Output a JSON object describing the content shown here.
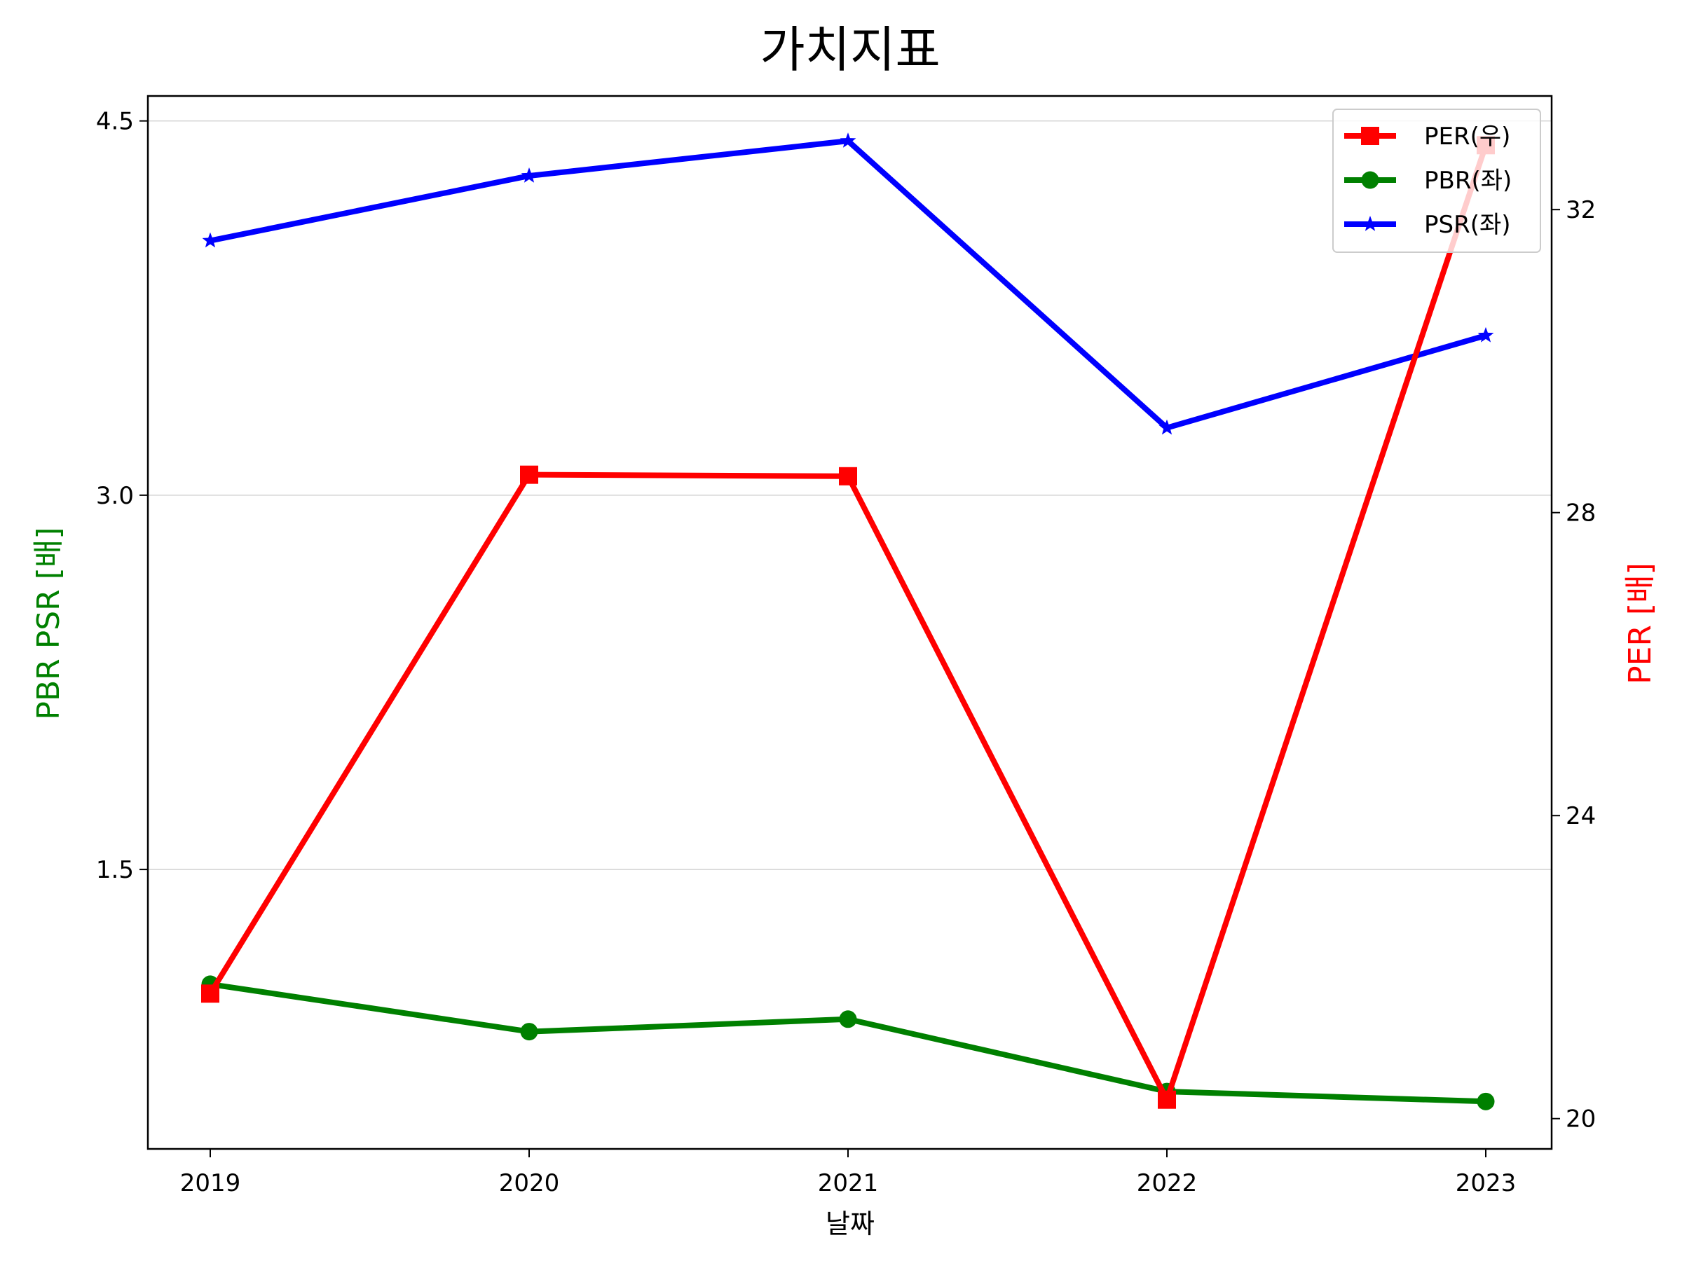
{
  "chart_data": {
    "type": "line",
    "title": "가치지표",
    "xlabel": "날짜",
    "ylabel_left": "PBR PSR [배]",
    "ylabel_right": "PER [배]",
    "ylabel_left_color": "#008000",
    "ylabel_right_color": "#ff0000",
    "categories": [
      "2019",
      "2020",
      "2021",
      "2022",
      "2023"
    ],
    "y_left": {
      "lim": [
        0.38,
        4.6
      ],
      "ticks": [
        1.5,
        3.0,
        4.5
      ],
      "tick_labels": [
        "1.5",
        "3.0",
        "4.5"
      ]
    },
    "y_right": {
      "lim": [
        19.6,
        33.5
      ],
      "ticks": [
        20,
        24,
        28,
        32
      ],
      "tick_labels": [
        "20",
        "24",
        "28",
        "32"
      ]
    },
    "grid": "horizontal (left axis)",
    "legend_position": "top-right",
    "series": [
      {
        "name": "PER(우)",
        "axis": "right",
        "color": "#ff0000",
        "marker": "square",
        "values": [
          21.65,
          28.5,
          28.48,
          20.25,
          32.85
        ]
      },
      {
        "name": "PBR(좌)",
        "axis": "left",
        "color": "#008000",
        "marker": "circle",
        "values": [
          1.04,
          0.85,
          0.9,
          0.61,
          0.57
        ]
      },
      {
        "name": "PSR(좌)",
        "axis": "left",
        "color": "#0000ff",
        "marker": "star",
        "values": [
          4.02,
          4.28,
          4.42,
          3.27,
          3.64
        ]
      }
    ]
  }
}
